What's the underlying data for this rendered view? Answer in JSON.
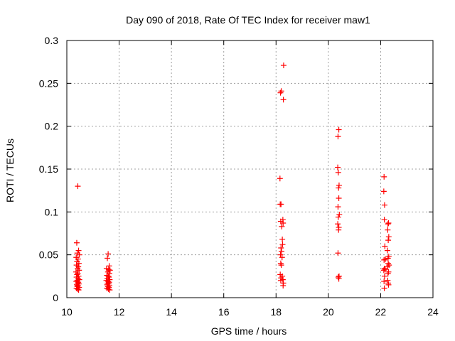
{
  "chart_data": {
    "type": "scatter",
    "title": "Day 090 of 2018, Rate Of TEC Index for receiver maw1",
    "xlabel": "GPS time / hours",
    "ylabel": "ROTI / TECUs",
    "xlim": [
      10,
      24
    ],
    "ylim": [
      0,
      0.3
    ],
    "x_ticks": [
      10,
      12,
      14,
      16,
      18,
      20,
      22,
      24
    ],
    "y_ticks": [
      0,
      0.05,
      0.1,
      0.15,
      0.2,
      0.25,
      0.3
    ],
    "x_tick_labels": [
      "10",
      "12",
      "14",
      "16",
      "18",
      "20",
      "22",
      "24"
    ],
    "y_tick_labels": [
      "0",
      "0.05",
      "0.1",
      "0.15",
      "0.2",
      "0.25",
      "0.3"
    ],
    "grid": true,
    "marker": "+",
    "color": "#ff0000",
    "series": [
      {
        "name": "maw1",
        "points": [
          [
            10.42,
            0.13
          ],
          [
            10.38,
            0.064
          ],
          [
            10.45,
            0.055
          ],
          [
            10.4,
            0.052
          ],
          [
            10.48,
            0.05
          ],
          [
            10.36,
            0.047
          ],
          [
            10.43,
            0.045
          ],
          [
            10.39,
            0.042
          ],
          [
            10.46,
            0.04
          ],
          [
            10.37,
            0.038
          ],
          [
            10.44,
            0.036
          ],
          [
            10.41,
            0.034
          ],
          [
            10.47,
            0.032
          ],
          [
            10.35,
            0.03
          ],
          [
            10.42,
            0.028
          ],
          [
            10.39,
            0.027
          ],
          [
            10.45,
            0.025
          ],
          [
            10.37,
            0.024
          ],
          [
            10.43,
            0.022
          ],
          [
            10.48,
            0.021
          ],
          [
            10.4,
            0.02
          ],
          [
            10.36,
            0.019
          ],
          [
            10.44,
            0.018
          ],
          [
            10.41,
            0.017
          ],
          [
            10.46,
            0.016
          ],
          [
            10.38,
            0.015
          ],
          [
            10.43,
            0.014
          ],
          [
            10.4,
            0.013
          ],
          [
            10.47,
            0.012
          ],
          [
            10.37,
            0.011
          ],
          [
            10.42,
            0.01
          ],
          [
            10.45,
            0.009
          ],
          [
            11.58,
            0.051
          ],
          [
            11.55,
            0.046
          ],
          [
            11.62,
            0.037
          ],
          [
            11.52,
            0.034
          ],
          [
            11.6,
            0.033
          ],
          [
            11.65,
            0.032
          ],
          [
            11.57,
            0.03
          ],
          [
            11.63,
            0.028
          ],
          [
            11.53,
            0.026
          ],
          [
            11.59,
            0.025
          ],
          [
            11.61,
            0.024
          ],
          [
            11.55,
            0.022
          ],
          [
            11.64,
            0.021
          ],
          [
            11.51,
            0.02
          ],
          [
            11.58,
            0.019
          ],
          [
            11.62,
            0.018
          ],
          [
            11.56,
            0.017
          ],
          [
            11.6,
            0.016
          ],
          [
            11.54,
            0.015
          ],
          [
            11.63,
            0.014
          ],
          [
            11.57,
            0.013
          ],
          [
            11.61,
            0.012
          ],
          [
            11.53,
            0.011
          ],
          [
            11.59,
            0.01
          ],
          [
            11.64,
            0.009
          ],
          [
            18.29,
            0.271
          ],
          [
            18.2,
            0.241
          ],
          [
            18.17,
            0.239
          ],
          [
            18.28,
            0.231
          ],
          [
            18.15,
            0.139
          ],
          [
            18.16,
            0.109
          ],
          [
            18.19,
            0.109
          ],
          [
            18.26,
            0.091
          ],
          [
            18.18,
            0.089
          ],
          [
            18.27,
            0.087
          ],
          [
            18.22,
            0.083
          ],
          [
            18.24,
            0.068
          ],
          [
            18.25,
            0.062
          ],
          [
            18.19,
            0.058
          ],
          [
            18.21,
            0.054
          ],
          [
            18.17,
            0.05
          ],
          [
            18.23,
            0.047
          ],
          [
            18.18,
            0.04
          ],
          [
            18.2,
            0.038
          ],
          [
            18.16,
            0.027
          ],
          [
            18.24,
            0.025
          ],
          [
            18.19,
            0.023
          ],
          [
            18.26,
            0.021
          ],
          [
            18.18,
            0.02
          ],
          [
            18.28,
            0.017
          ],
          [
            18.27,
            0.014
          ],
          [
            20.4,
            0.196
          ],
          [
            20.37,
            0.188
          ],
          [
            20.36,
            0.152
          ],
          [
            20.38,
            0.146
          ],
          [
            20.41,
            0.131
          ],
          [
            20.39,
            0.128
          ],
          [
            20.4,
            0.116
          ],
          [
            20.37,
            0.106
          ],
          [
            20.42,
            0.097
          ],
          [
            20.38,
            0.094
          ],
          [
            20.36,
            0.086
          ],
          [
            20.4,
            0.082
          ],
          [
            20.39,
            0.079
          ],
          [
            20.37,
            0.052
          ],
          [
            20.41,
            0.025
          ],
          [
            20.38,
            0.024
          ],
          [
            20.4,
            0.022
          ],
          [
            22.13,
            0.141
          ],
          [
            22.12,
            0.124
          ],
          [
            22.15,
            0.108
          ],
          [
            22.14,
            0.091
          ],
          [
            22.3,
            0.087
          ],
          [
            22.28,
            0.086
          ],
          [
            22.27,
            0.079
          ],
          [
            22.31,
            0.071
          ],
          [
            22.29,
            0.067
          ],
          [
            22.16,
            0.06
          ],
          [
            22.26,
            0.055
          ],
          [
            22.31,
            0.048
          ],
          [
            22.28,
            0.046
          ],
          [
            22.18,
            0.045
          ],
          [
            22.13,
            0.044
          ],
          [
            22.29,
            0.04
          ],
          [
            22.32,
            0.038
          ],
          [
            22.27,
            0.036
          ],
          [
            22.14,
            0.034
          ],
          [
            22.17,
            0.033
          ],
          [
            22.12,
            0.032
          ],
          [
            22.3,
            0.03
          ],
          [
            22.28,
            0.028
          ],
          [
            22.15,
            0.025
          ],
          [
            22.27,
            0.02
          ],
          [
            22.13,
            0.019
          ],
          [
            22.29,
            0.017
          ],
          [
            22.3,
            0.015
          ],
          [
            22.14,
            0.011
          ]
        ]
      }
    ]
  }
}
